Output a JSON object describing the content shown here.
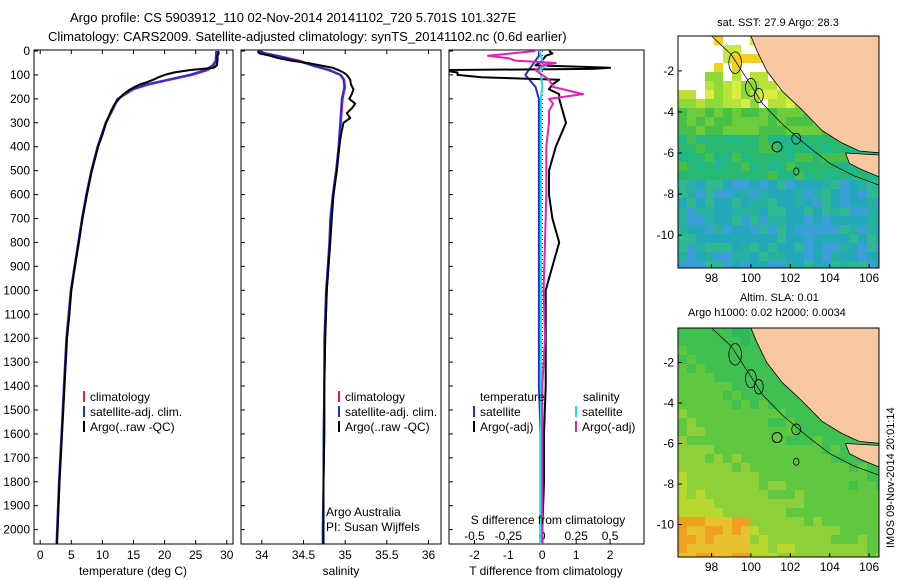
{
  "header": {
    "line1": "Argo profile: CS 5903912_110 02-Nov-2014 20141102_720 5.701S 101.327E",
    "line2": "Climatology: CARS2009. Satellite-adjusted climatology: synTS_20141102.nc (0.6d earlier)"
  },
  "colors": {
    "climatology": "#e8202a",
    "satellite": "#1f2ee0",
    "argo": "#000000",
    "sal_satellite": "#20e0e0",
    "sal_argo": "#e020c0",
    "land": "#f7c8a0"
  },
  "depth_axis": {
    "ticks": [
      "0",
      "100",
      "200",
      "300",
      "400",
      "500",
      "600",
      "700",
      "800",
      "900",
      "1000",
      "1100",
      "1200",
      "1300",
      "1400",
      "1500",
      "1600",
      "1700",
      "1800",
      "1900",
      "2000"
    ],
    "range": [
      0,
      2060
    ]
  },
  "chart_data": [
    {
      "type": "line",
      "panel": "temperature",
      "xlabel": "temperature (deg C)",
      "xticks": [
        "0",
        "5",
        "10",
        "15",
        "20",
        "25",
        "30"
      ],
      "xlim": [
        -1,
        31
      ],
      "legend": [
        "climatology",
        "satellite-adj. clim.",
        "Argo(..raw -QC)"
      ],
      "series": [
        {
          "name": "climatology",
          "depth": [
            0,
            40,
            60,
            80,
            100,
            120,
            140,
            160,
            180,
            200,
            250,
            300,
            400,
            500,
            600,
            700,
            800,
            900,
            1000,
            1200,
            1400,
            1600,
            1800,
            2000,
            2060
          ],
          "values": [
            28.4,
            28.3,
            28.0,
            27.0,
            24.5,
            21.0,
            17.5,
            15.0,
            13.8,
            12.5,
            11.6,
            10.6,
            9.3,
            8.3,
            7.5,
            6.8,
            6.2,
            5.6,
            5.0,
            4.3,
            3.9,
            3.5,
            3.1,
            2.8,
            2.7
          ]
        },
        {
          "name": "satellite-adj. clim.",
          "depth": [
            0,
            40,
            60,
            80,
            100,
            120,
            140,
            160,
            180,
            200,
            250,
            300,
            400,
            500,
            600,
            700,
            800,
            900,
            1000,
            1200,
            1400,
            1600,
            1800,
            2000,
            2060
          ],
          "values": [
            28.3,
            28.2,
            27.7,
            26.5,
            24.0,
            20.5,
            17.0,
            14.8,
            13.6,
            12.4,
            11.5,
            10.5,
            9.2,
            8.2,
            7.4,
            6.7,
            6.1,
            5.5,
            4.9,
            4.2,
            3.8,
            3.4,
            3.0,
            2.7,
            2.6
          ]
        },
        {
          "name": "Argo(..raw -QC)",
          "depth": [
            0,
            10,
            20,
            40,
            60,
            70,
            80,
            90,
            100,
            110,
            120,
            130,
            140,
            150,
            160,
            170,
            180,
            190,
            200,
            220,
            250,
            300,
            350,
            400,
            500,
            600,
            700,
            800,
            900,
            1000,
            1100,
            1200,
            1400,
            1600,
            1800,
            2000,
            2060
          ],
          "values": [
            28.6,
            28.7,
            28.5,
            28.5,
            28.4,
            27.9,
            24.0,
            21.5,
            20.0,
            19.0,
            18.2,
            17.2,
            16.0,
            15.2,
            14.5,
            13.9,
            13.4,
            13.0,
            12.7,
            12.0,
            11.4,
            10.6,
            10.0,
            9.3,
            8.3,
            7.5,
            6.8,
            6.2,
            5.6,
            5.0,
            4.7,
            4.3,
            3.9,
            3.5,
            3.1,
            2.8,
            2.7
          ]
        }
      ]
    },
    {
      "type": "line",
      "panel": "salinity",
      "xlabel": "salinity",
      "xticks": [
        "34",
        "34.5",
        "35",
        "35.5",
        "36"
      ],
      "xlim": [
        33.75,
        36.15
      ],
      "legend": [
        "climatology",
        "satellite-adj. clim.",
        "Argo(..raw -QC)"
      ],
      "annotation": [
        "Argo Australia",
        "PI: Susan Wijffels"
      ],
      "series": [
        {
          "name": "climatology",
          "depth": [
            0,
            10,
            20,
            40,
            60,
            80,
            100,
            120,
            150,
            200,
            250,
            300,
            350,
            400,
            500,
            600,
            700,
            800,
            900,
            1000,
            1100,
            1200,
            1400,
            1600,
            1800,
            2000,
            2060
          ],
          "values": [
            33.97,
            34.05,
            34.2,
            34.45,
            34.62,
            34.82,
            34.95,
            34.99,
            35.0,
            34.97,
            34.96,
            34.95,
            34.94,
            34.93,
            34.9,
            34.86,
            34.83,
            34.82,
            34.8,
            34.78,
            34.77,
            34.76,
            34.75,
            34.75,
            34.74,
            34.74,
            34.74
          ]
        },
        {
          "name": "satellite-adj. clim.",
          "depth": [
            0,
            10,
            20,
            40,
            60,
            80,
            100,
            120,
            150,
            200,
            250,
            300,
            350,
            400,
            500,
            600,
            700,
            800,
            900,
            1000,
            1100,
            1200,
            1400,
            1600,
            1800,
            2000,
            2060
          ],
          "values": [
            33.96,
            34.04,
            34.18,
            34.42,
            34.6,
            34.8,
            34.94,
            34.98,
            34.99,
            34.96,
            34.95,
            34.94,
            34.93,
            34.92,
            34.89,
            34.85,
            34.82,
            34.81,
            34.79,
            34.77,
            34.76,
            34.75,
            34.75,
            34.74,
            34.74,
            34.73,
            34.73
          ]
        },
        {
          "name": "Argo(..raw -QC)",
          "depth": [
            0,
            10,
            20,
            30,
            40,
            50,
            60,
            70,
            80,
            90,
            100,
            120,
            140,
            160,
            180,
            200,
            220,
            240,
            260,
            280,
            300,
            350,
            400,
            500,
            600,
            700,
            800,
            900,
            1000,
            1100,
            1200,
            1400,
            1600,
            1800,
            2000,
            2060
          ],
          "values": [
            33.95,
            33.97,
            34.1,
            34.2,
            34.35,
            34.55,
            34.7,
            34.85,
            34.92,
            34.98,
            35.02,
            35.06,
            35.07,
            35.1,
            35.08,
            35.05,
            35.12,
            35.08,
            35.02,
            35.06,
            34.98,
            34.95,
            34.93,
            34.9,
            34.86,
            34.84,
            34.82,
            34.8,
            34.78,
            34.77,
            34.76,
            34.75,
            34.75,
            34.74,
            34.74,
            34.74
          ]
        }
      ]
    },
    {
      "type": "line",
      "panel": "difference",
      "xlabel": "T difference from climatology",
      "x2label": "S difference from climatology",
      "xticks": [
        "-2",
        "-1",
        "0",
        "1",
        "2"
      ],
      "x2ticks": [
        "-0.5",
        "-0.25",
        "0",
        "0.25",
        "0.5"
      ],
      "xlim": [
        -2.75,
        3.0
      ],
      "legend_temperature_title": "temperature",
      "legend_salinity_title": "salinity",
      "legend_temperature": [
        "satellite",
        "Argo(-adj)"
      ],
      "legend_salinity": [
        "satellite",
        "Argo(-adj)"
      ],
      "series": [
        {
          "name": "temperature satellite",
          "depth": [
            0,
            20,
            40,
            60,
            80,
            100,
            150,
            200,
            300,
            400,
            500,
            600,
            800,
            1000,
            1200,
            1400,
            1600,
            1800,
            2000,
            2060
          ],
          "values": [
            -0.1,
            -0.1,
            -0.2,
            -0.3,
            -0.4,
            -0.5,
            -0.2,
            -0.1,
            -0.1,
            -0.1,
            -0.1,
            -0.1,
            -0.1,
            -0.1,
            -0.1,
            -0.1,
            -0.05,
            -0.05,
            -0.05,
            -0.05
          ]
        },
        {
          "name": "temperature Argo(-adj)",
          "depth": [
            0,
            10,
            20,
            40,
            60,
            65,
            70,
            75,
            80,
            90,
            100,
            110,
            120,
            140,
            160,
            180,
            200,
            250,
            300,
            400,
            500,
            600,
            700,
            800,
            900,
            1000,
            1100,
            1200,
            1400,
            1600,
            1800,
            2000,
            2060
          ],
          "values": [
            0.2,
            0.3,
            0.1,
            0.0,
            -0.2,
            1.0,
            2.0,
            1.5,
            -3.0,
            -2.5,
            -2.5,
            -1.8,
            0.5,
            0.3,
            0.2,
            0.5,
            0.5,
            0.6,
            0.7,
            0.4,
            0.2,
            0.2,
            0.3,
            0.5,
            0.3,
            0.1,
            0.1,
            0.1,
            0.1,
            0.05,
            0.05,
            0.0,
            0.0
          ]
        },
        {
          "name": "salinity satellite",
          "depth": [
            0,
            20,
            40,
            60,
            80,
            100,
            150,
            200,
            300,
            400,
            500,
            600,
            800,
            1000,
            1200,
            1400,
            1600,
            1800,
            2000,
            2060
          ],
          "values": [
            -0.02,
            -0.01,
            0.0,
            0.03,
            -0.02,
            -0.01,
            0.0,
            -0.01,
            -0.01,
            -0.01,
            -0.01,
            -0.01,
            -0.01,
            -0.01,
            -0.01,
            -0.01,
            -0.01,
            -0.01,
            -0.01,
            -0.01
          ]
        },
        {
          "name": "salinity Argo(-adj)",
          "depth": [
            0,
            20,
            30,
            40,
            50,
            60,
            80,
            100,
            120,
            150,
            180,
            200,
            220,
            250,
            300,
            400,
            600,
            800,
            1000,
            1200,
            1400,
            1600,
            1800,
            2000,
            2060
          ],
          "values": [
            -0.05,
            -0.4,
            -0.25,
            -0.2,
            0.1,
            0.0,
            -0.05,
            0.0,
            0.05,
            0.08,
            0.3,
            0.05,
            0.08,
            0.05,
            0.05,
            0.03,
            0.03,
            0.02,
            0.01,
            0.02,
            0.0,
            0.0,
            0.0,
            0.0,
            0.0
          ]
        }
      ]
    },
    {
      "type": "heatmap",
      "panel": "sst_map",
      "title": "sat. SST: 27.9 Argo: 28.3",
      "xticks": [
        "98",
        "100",
        "102",
        "104",
        "106"
      ],
      "yticks": [
        "-2",
        "-4",
        "-6",
        "-8",
        "-10"
      ],
      "xlim": [
        96.3,
        106.5
      ],
      "ylim": [
        -11.6,
        -0.3
      ],
      "profile_location": {
        "lon": 101.327,
        "lat": -5.701
      }
    },
    {
      "type": "heatmap",
      "panel": "sla_map",
      "title": "Altim. SLA: 0.01",
      "subtitle": "Argo h1000: 0.02 h2000: 0.0034",
      "xticks": [
        "98",
        "100",
        "102",
        "104",
        "106"
      ],
      "yticks": [
        "-2",
        "-4",
        "-6",
        "-8",
        "-10"
      ],
      "xlim": [
        96.3,
        106.5
      ],
      "ylim": [
        -11.6,
        -0.3
      ],
      "profile_location": {
        "lon": 101.327,
        "lat": -5.701
      }
    }
  ],
  "footer": {
    "stamp": "IMOS 09-Nov-2014 20:01:14"
  }
}
